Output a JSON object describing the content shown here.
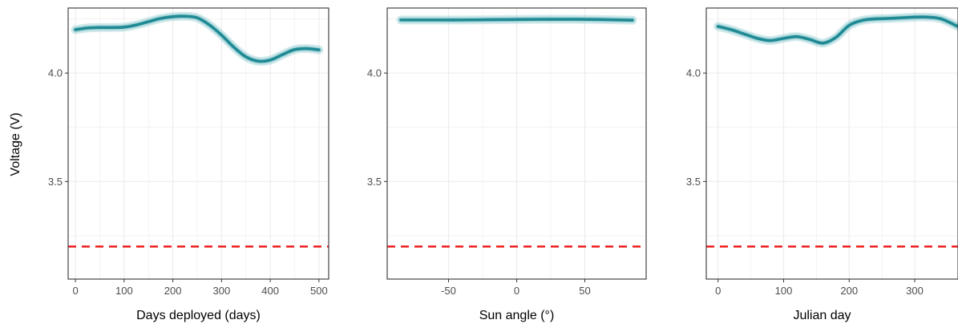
{
  "figure": {
    "ylabel": "Voltage (V)"
  },
  "colors": {
    "curve": "#1f8a94",
    "band": "#7fc4c9",
    "threshold": "#ee1111",
    "grid": "#ebebeb",
    "frame": "#333333"
  },
  "chart_data": [
    {
      "type": "line",
      "xlabel": "Days deployed (days)",
      "ylabel": "Voltage (V)",
      "xlim": [
        -15,
        520
      ],
      "ylim": [
        3.05,
        4.3
      ],
      "xticks": [
        0,
        100,
        200,
        300,
        400,
        500
      ],
      "xtick_labels": [
        "0",
        "100",
        "200",
        "300",
        "400",
        "500"
      ],
      "yticks": [
        3.5,
        4.0
      ],
      "ytick_labels": [
        "3.5",
        "4.0"
      ],
      "grid": true,
      "threshold": 3.2,
      "series": [
        {
          "x": [
            0,
            25,
            50,
            75,
            100,
            125,
            150,
            175,
            200,
            225,
            250,
            275,
            300,
            325,
            350,
            375,
            400,
            425,
            450,
            475,
            500
          ],
          "y": [
            4.2,
            4.208,
            4.21,
            4.21,
            4.212,
            4.222,
            4.237,
            4.252,
            4.26,
            4.262,
            4.255,
            4.222,
            4.175,
            4.12,
            4.075,
            4.055,
            4.06,
            4.085,
            4.108,
            4.113,
            4.107
          ]
        }
      ]
    },
    {
      "type": "line",
      "xlabel": "Sun angle (°)",
      "ylabel": "",
      "xlim": [
        -95,
        95
      ],
      "ylim": [
        3.05,
        4.3
      ],
      "xticks": [
        -50,
        0,
        50
      ],
      "xtick_labels": [
        "-50",
        "0",
        "50"
      ],
      "yticks": [
        3.5,
        4.0
      ],
      "ytick_labels": [
        "3.5",
        "4.0"
      ],
      "grid": true,
      "threshold": 3.2,
      "series": [
        {
          "x": [
            -85,
            -60,
            -40,
            -20,
            0,
            20,
            40,
            60,
            85
          ],
          "y": [
            4.245,
            4.245,
            4.245,
            4.246,
            4.247,
            4.248,
            4.248,
            4.247,
            4.244
          ]
        }
      ]
    },
    {
      "type": "line",
      "xlabel": "Julian day",
      "ylabel": "",
      "xlim": [
        -18,
        366
      ],
      "ylim": [
        3.05,
        4.3
      ],
      "xticks": [
        0,
        100,
        200,
        300
      ],
      "xtick_labels": [
        "0",
        "100",
        "200",
        "300"
      ],
      "yticks": [
        3.5,
        4.0
      ],
      "ytick_labels": [
        "3.5",
        "4.0"
      ],
      "grid": true,
      "threshold": 3.2,
      "series": [
        {
          "x": [
            0,
            20,
            40,
            60,
            80,
            100,
            120,
            140,
            160,
            180,
            200,
            220,
            240,
            260,
            280,
            300,
            320,
            340,
            366
          ],
          "y": [
            4.215,
            4.2,
            4.18,
            4.16,
            4.15,
            4.16,
            4.168,
            4.155,
            4.138,
            4.165,
            4.22,
            4.243,
            4.25,
            4.252,
            4.255,
            4.258,
            4.258,
            4.25,
            4.215
          ]
        }
      ]
    }
  ]
}
